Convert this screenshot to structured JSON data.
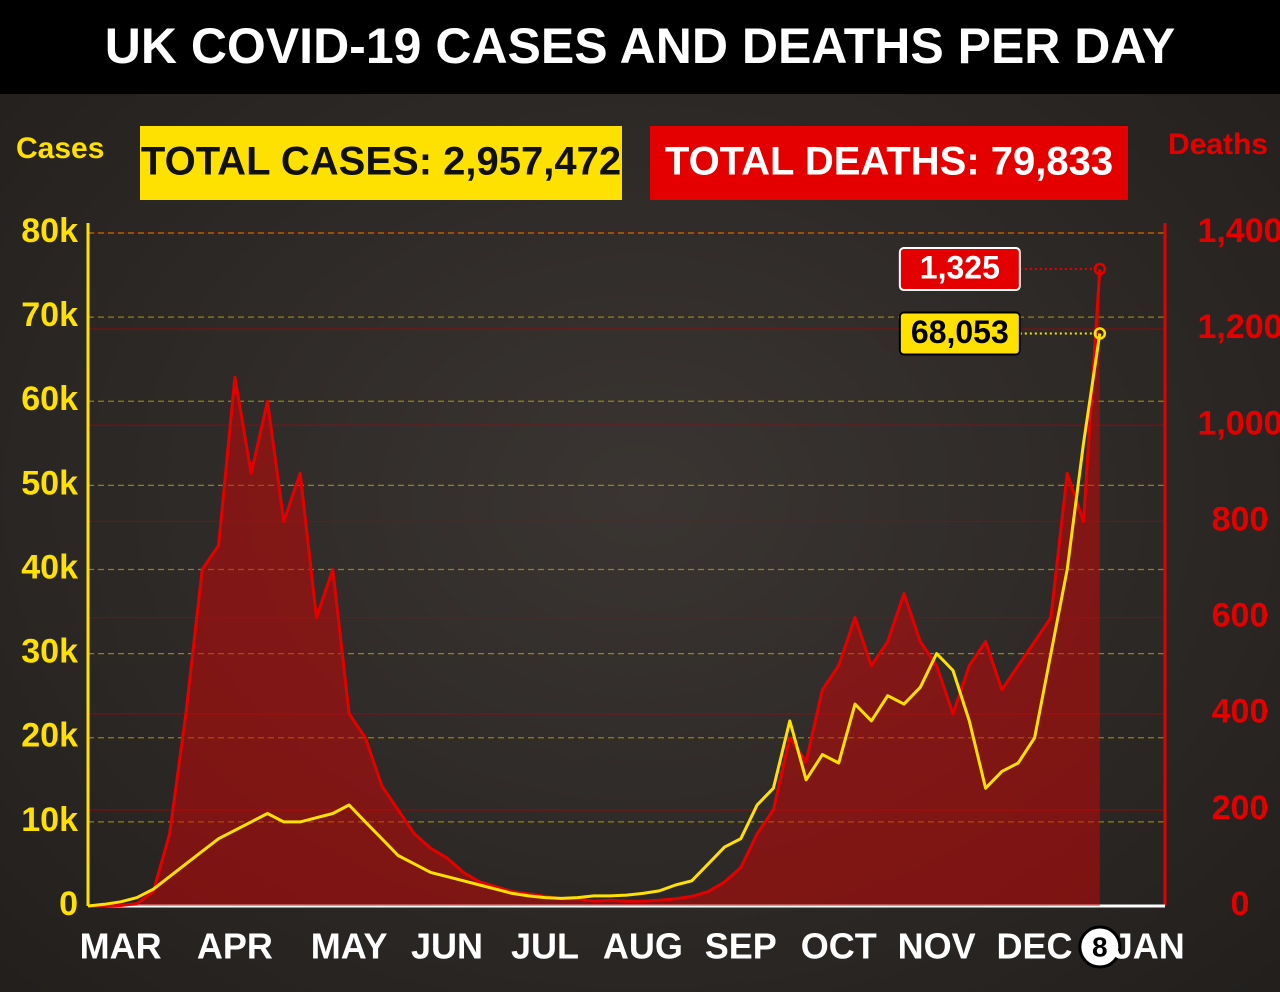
{
  "chart_data": {
    "type": "line",
    "title": "UK COVID-19 CASES AND DEATHS PER DAY",
    "annotations": [
      "TOTAL CASES: 2,957,472",
      "TOTAL DEATHS: 79,833"
    ],
    "ylabel": "Cases",
    "y2label": "Deaths",
    "categories": [
      null,
      null,
      "MAR",
      null,
      null,
      null,
      null,
      null,
      null,
      "APR",
      null,
      null,
      null,
      null,
      null,
      null,
      "MAY",
      null,
      null,
      null,
      null,
      null,
      "JUN",
      null,
      null,
      null,
      null,
      null,
      "JUL",
      null,
      null,
      null,
      null,
      null,
      "AUG",
      null,
      null,
      null,
      null,
      null,
      "SEP",
      null,
      null,
      null,
      null,
      null,
      "OCT",
      null,
      null,
      null,
      null,
      null,
      "NOV",
      null,
      null,
      null,
      null,
      null,
      "DEC",
      null,
      null,
      null,
      "8",
      null,
      null,
      "JAN"
    ],
    "ylim": [
      0,
      80000
    ],
    "yticks": [
      0,
      {
        "value": 10000,
        "label": "10k"
      },
      {
        "value": 20000,
        "label": "20k"
      },
      {
        "value": 30000,
        "label": "30k"
      },
      {
        "value": 40000,
        "label": "40k"
      },
      {
        "value": 50000,
        "label": "50k"
      },
      {
        "value": 60000,
        "label": "60k"
      },
      {
        "value": 70000,
        "label": "70k"
      },
      {
        "value": 80000,
        "label": "80k"
      }
    ],
    "y2lim": [
      0,
      1400
    ],
    "y2ticks": [
      0,
      200,
      400,
      600,
      800,
      {
        "value": 1000,
        "label": "1,000"
      },
      {
        "value": 1200,
        "label": "1,200"
      },
      {
        "value": 1400,
        "label": "1,400"
      }
    ],
    "grid": true,
    "series": [
      {
        "name": "Deaths",
        "color": "#e50000",
        "axis": "y2",
        "area": true,
        "values": [
          0,
          0,
          1,
          5,
          30,
          150,
          400,
          700,
          750,
          1100,
          900,
          1050,
          800,
          900,
          600,
          700,
          400,
          350,
          250,
          200,
          150,
          120,
          100,
          70,
          50,
          40,
          30,
          25,
          20,
          15,
          15,
          10,
          12,
          10,
          10,
          12,
          15,
          20,
          30,
          50,
          80,
          150,
          200,
          350,
          300,
          450,
          500,
          600,
          500,
          550,
          650,
          550,
          500,
          400,
          500,
          550,
          450,
          500,
          550,
          600,
          900,
          800,
          1325,
          null,
          null,
          null
        ],
        "value_labels": [
          null,
          null,
          null,
          null,
          null,
          null,
          null,
          null,
          null,
          null,
          null,
          null,
          null,
          null,
          null,
          null,
          null,
          null,
          null,
          null,
          null,
          null,
          null,
          null,
          null,
          null,
          null,
          null,
          null,
          null,
          null,
          null,
          null,
          null,
          null,
          null,
          null,
          null,
          null,
          null,
          null,
          null,
          null,
          null,
          null,
          null,
          null,
          null,
          null,
          null,
          null,
          null,
          null,
          null,
          null,
          null,
          null,
          null,
          null,
          null,
          null,
          null,
          "1,325",
          null,
          null,
          null
        ]
      },
      {
        "name": "Cases",
        "color": "#ffe100",
        "axis": "y",
        "values": [
          0,
          200,
          500,
          1000,
          2000,
          3500,
          5000,
          6500,
          8000,
          9000,
          10000,
          11000,
          10000,
          10000,
          10500,
          11000,
          12000,
          10000,
          8000,
          6000,
          5000,
          4000,
          3500,
          3000,
          2500,
          2000,
          1500,
          1200,
          1000,
          900,
          1000,
          1200,
          1200,
          1300,
          1500,
          1800,
          2500,
          3000,
          5000,
          7000,
          8000,
          12000,
          14000,
          22000,
          15000,
          18000,
          17000,
          24000,
          22000,
          25000,
          24000,
          26000,
          30000,
          28000,
          22000,
          14000,
          16000,
          17000,
          20000,
          30000,
          40000,
          55000,
          68053,
          null,
          null,
          null
        ],
        "value_labels": [
          null,
          null,
          null,
          null,
          null,
          null,
          null,
          null,
          null,
          null,
          null,
          null,
          null,
          null,
          null,
          null,
          null,
          null,
          null,
          null,
          null,
          null,
          null,
          null,
          null,
          null,
          null,
          null,
          null,
          null,
          null,
          null,
          null,
          null,
          null,
          null,
          null,
          null,
          null,
          null,
          null,
          null,
          null,
          null,
          null,
          null,
          null,
          null,
          null,
          null,
          null,
          null,
          null,
          null,
          null,
          null,
          null,
          null,
          null,
          null,
          null,
          null,
          "68,053",
          null,
          null,
          null
        ]
      }
    ]
  }
}
